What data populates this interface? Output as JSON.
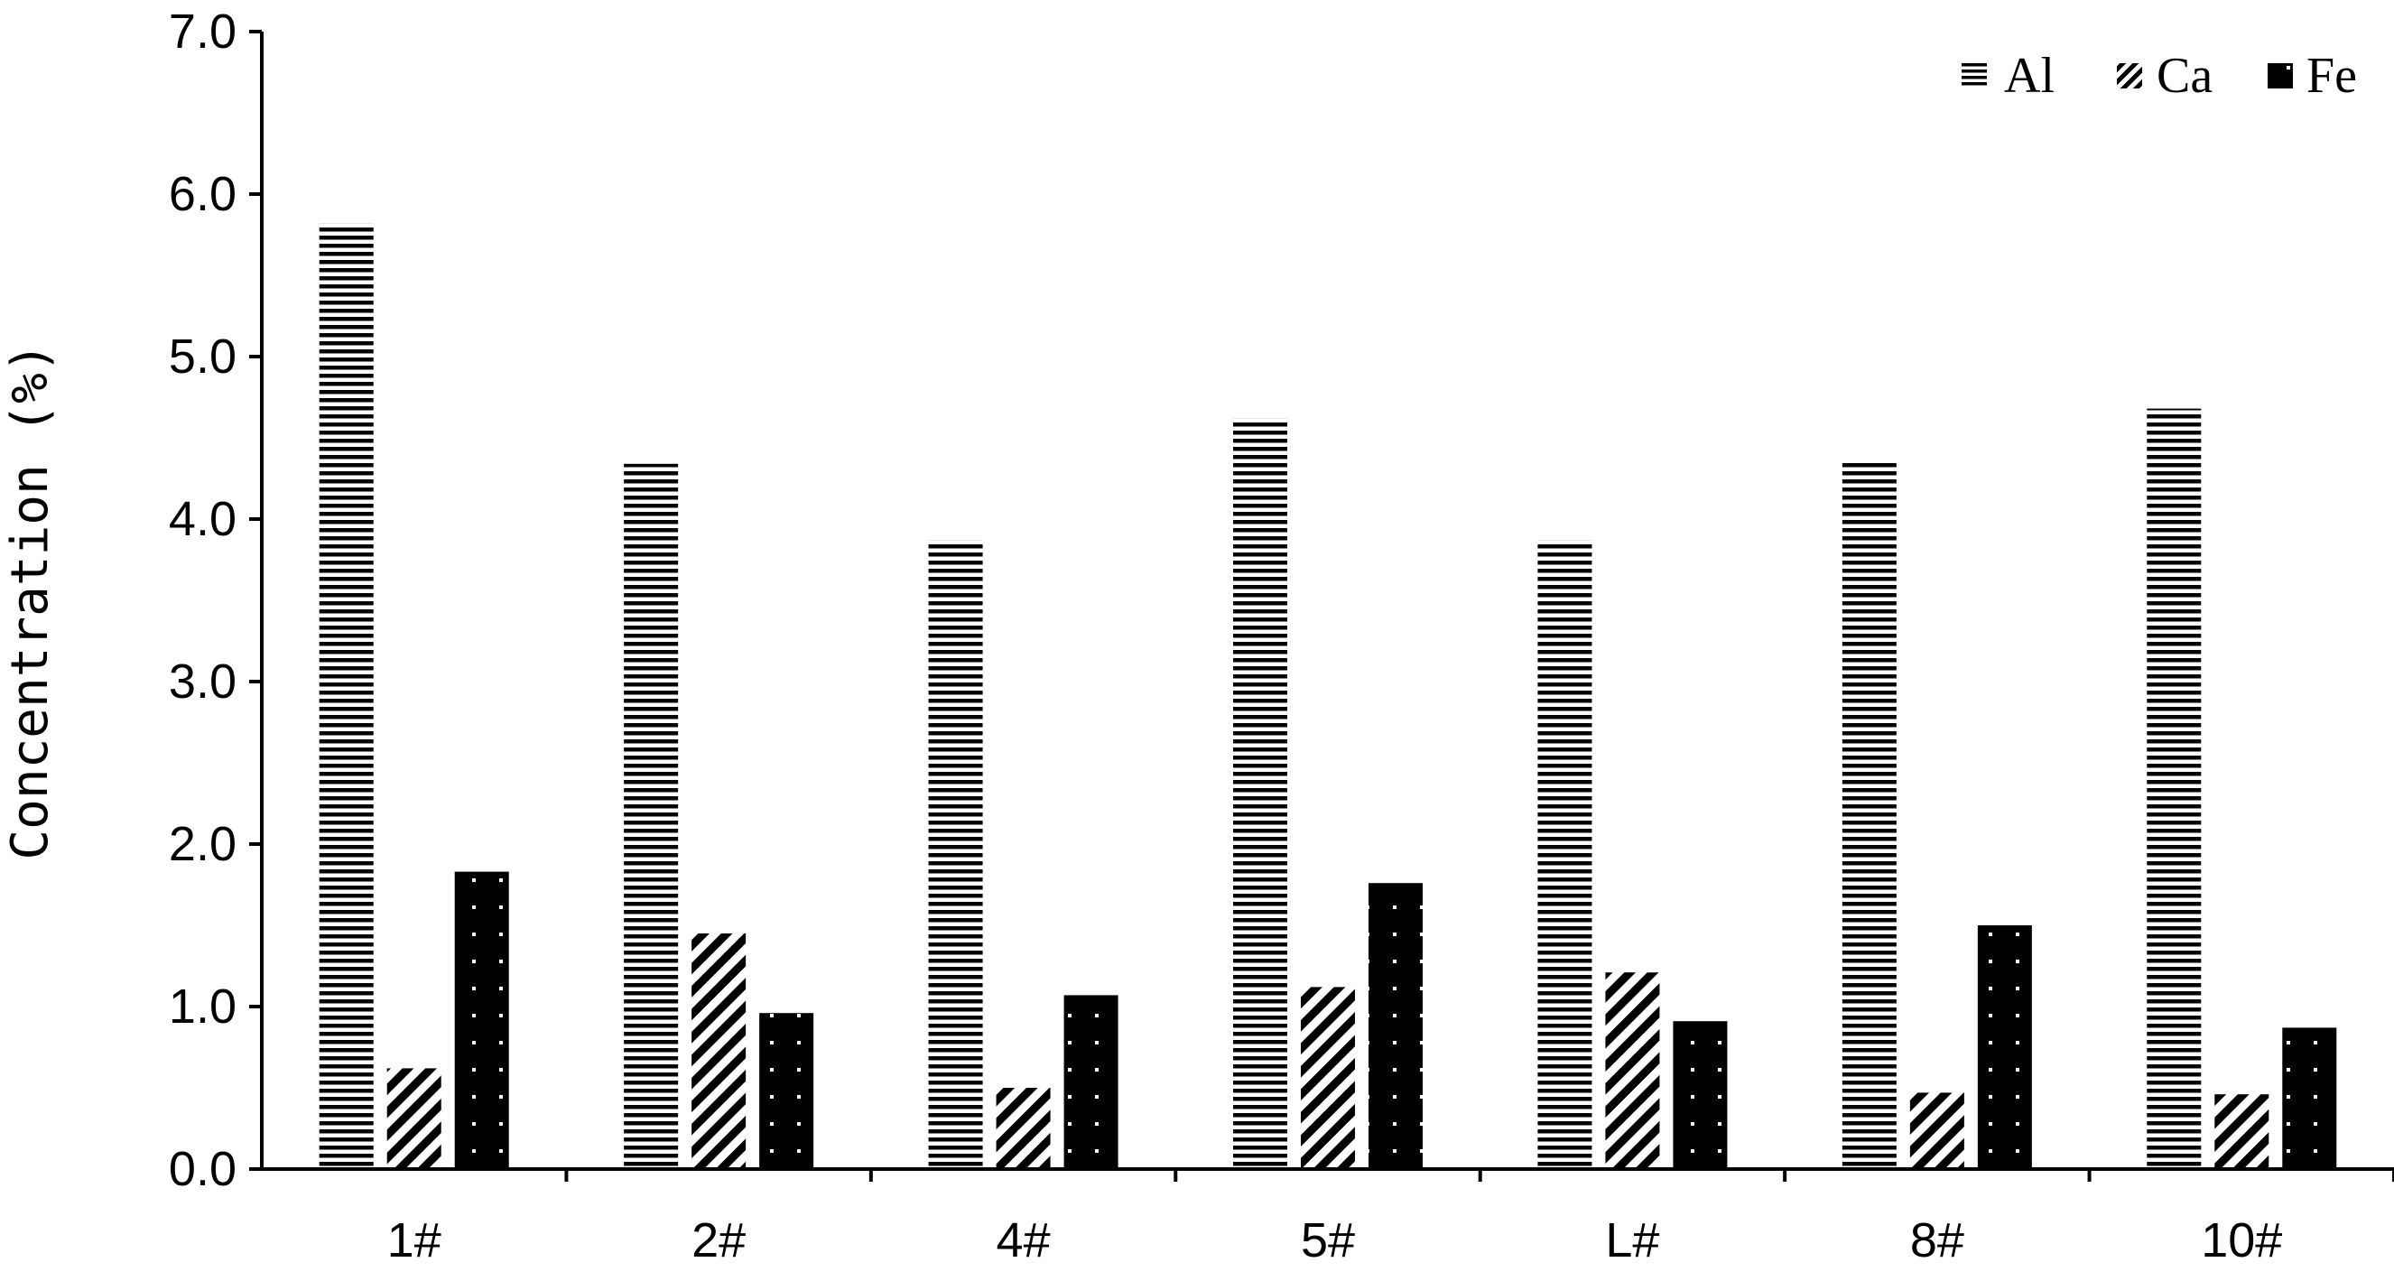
{
  "chart_data": {
    "type": "bar",
    "categories": [
      "1#",
      "2#",
      "4#",
      "5#",
      "L#",
      "8#",
      "10#"
    ],
    "series": [
      {
        "name": "Al",
        "pattern": "horizontal-lines",
        "values": [
          5.82,
          4.34,
          3.87,
          4.62,
          3.87,
          4.35,
          4.68
        ]
      },
      {
        "name": "Ca",
        "pattern": "diagonal-hatch",
        "values": [
          0.62,
          1.45,
          0.5,
          1.12,
          1.21,
          0.47,
          0.46
        ]
      },
      {
        "name": "Fe",
        "pattern": "dotted-black",
        "values": [
          1.83,
          0.96,
          1.07,
          1.76,
          0.91,
          1.5,
          0.87
        ]
      }
    ],
    "ylabel": "Concentration (%)",
    "xlabel": "",
    "ylim": [
      0,
      7.0
    ],
    "yticks": [
      "0.0",
      "1.0",
      "2.0",
      "3.0",
      "4.0",
      "5.0",
      "6.0",
      "7.0"
    ],
    "grid": false,
    "legend_position": "top-right",
    "colors": {
      "ink": "#000000",
      "background": "#ffffff"
    }
  }
}
